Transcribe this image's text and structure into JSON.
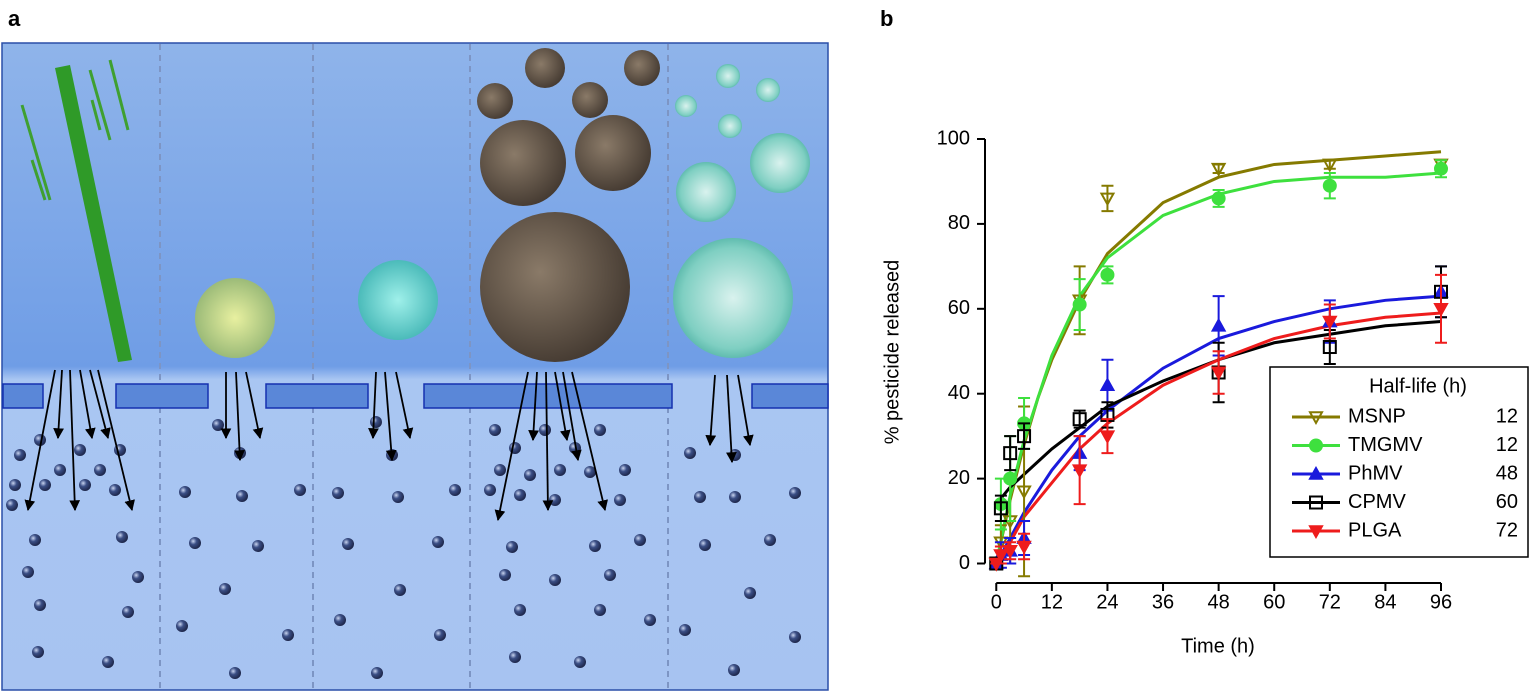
{
  "panel_a": {
    "label": "a"
  },
  "chart_data": {
    "type": "line",
    "label": "b",
    "xlabel": "Time (h)",
    "ylabel": "% pesticide released",
    "xlim": [
      -2,
      96
    ],
    "ylim": [
      -2,
      100
    ],
    "xticks": [
      0,
      12,
      24,
      36,
      48,
      60,
      72,
      84,
      96
    ],
    "yticks": [
      0,
      20,
      40,
      60,
      80,
      100
    ],
    "x": [
      0,
      1,
      3,
      6,
      18,
      24,
      48,
      72,
      96
    ],
    "fit_x": [
      0,
      3,
      6,
      9,
      12,
      18,
      24,
      36,
      48,
      60,
      72,
      84,
      96
    ],
    "legend_title": "Half-life (h)",
    "legend": "lower right",
    "series": [
      {
        "name": "MSNP",
        "color": "#857a00",
        "marker": "triangle-down-open",
        "half_life": 12,
        "values": [
          0,
          5,
          10,
          17,
          62,
          86,
          93,
          94,
          94
        ],
        "errors": [
          0,
          4,
          10,
          20,
          8,
          3,
          1,
          1,
          1
        ],
        "fit": [
          0,
          15,
          28,
          39,
          48,
          62,
          73,
          85,
          91,
          94,
          95,
          96,
          97
        ]
      },
      {
        "name": "TMGMV",
        "color": "#3ee03e",
        "marker": "circle",
        "half_life": 12,
        "values": [
          0,
          14,
          20,
          33,
          61,
          68,
          86,
          89,
          93
        ],
        "errors": [
          0,
          6,
          10,
          6,
          6,
          2,
          2,
          3,
          2
        ],
        "fit": [
          0,
          16,
          29,
          39,
          49,
          63,
          72,
          82,
          87,
          90,
          91,
          91,
          92
        ]
      },
      {
        "name": "PhMV",
        "color": "#1a1adc",
        "marker": "triangle-up",
        "half_life": 48,
        "values": [
          0,
          2,
          3,
          6,
          26,
          42,
          56,
          57,
          64
        ],
        "errors": [
          0,
          3,
          3,
          4,
          4,
          6,
          7,
          5,
          6
        ],
        "fit": [
          0,
          6,
          12,
          17,
          22,
          30,
          36,
          46,
          53,
          57,
          60,
          62,
          63
        ]
      },
      {
        "name": "CPMV",
        "color": "#000000",
        "marker": "square-open",
        "half_life": 60,
        "values": [
          0,
          13,
          26,
          30,
          34,
          35,
          45,
          51,
          64
        ],
        "errors": [
          0,
          3,
          4,
          3,
          2,
          3,
          7,
          4,
          6
        ],
        "fit": [
          14,
          18,
          21,
          24,
          27,
          32,
          37,
          43,
          48,
          52,
          54,
          56,
          57
        ]
      },
      {
        "name": "PLGA",
        "color": "#ee1c1c",
        "marker": "triangle-down",
        "half_life": 72,
        "values": [
          0,
          2,
          3,
          4,
          22,
          30,
          45,
          57,
          60
        ],
        "errors": [
          0,
          2,
          2,
          3,
          8,
          4,
          5,
          4,
          8
        ],
        "fit": [
          0,
          5,
          11,
          15,
          19,
          27,
          33,
          42,
          48,
          53,
          56,
          58,
          59
        ]
      }
    ]
  }
}
